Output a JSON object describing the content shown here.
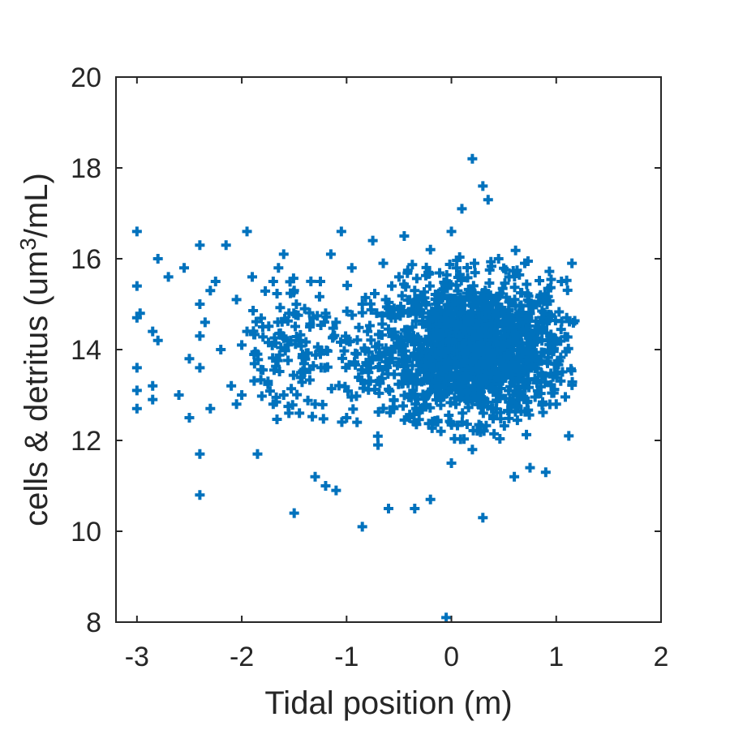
{
  "chart_data": {
    "type": "scatter",
    "title": "",
    "xlabel": "Tidal position (m)",
    "ylabel_main": "cells & detritus (um",
    "ylabel_sup": "3",
    "ylabel_tail": "/mL)",
    "xlim": [
      -3.2,
      2
    ],
    "ylim": [
      8,
      20
    ],
    "xticks": [
      -3,
      -2,
      -1,
      0,
      1,
      2
    ],
    "xtick_labels": [
      "-3",
      "-2",
      "-1",
      "0",
      "1",
      "2"
    ],
    "yticks": [
      8,
      10,
      12,
      14,
      16,
      18,
      20
    ],
    "ytick_labels": [
      "8",
      "10",
      "12",
      "14",
      "16",
      "18",
      "20"
    ],
    "grid": false,
    "box": true,
    "marker": "plus",
    "color": "#0072BD",
    "series": [
      {
        "x": [
          -3.0,
          -3.0,
          -3.0,
          -3.0,
          -3.0,
          -3.0,
          -2.97,
          -2.85,
          -2.85,
          -2.85,
          -2.8,
          -2.8,
          -2.7,
          -2.6,
          -2.55,
          -2.5,
          -2.5,
          -2.4,
          -2.4,
          -2.4,
          -2.4,
          -2.4,
          -2.4,
          -2.35,
          -2.3,
          -2.3,
          -2.25,
          -2.2,
          -2.15,
          -2.1,
          -2.05,
          -2.05,
          -2.0,
          -2.0,
          -1.95,
          -1.95,
          -1.9,
          -1.85,
          -1.85,
          -1.8,
          -1.75,
          -1.7,
          -1.7,
          -1.65,
          -1.6,
          -1.6,
          -1.55,
          -1.55,
          -1.5,
          -1.5,
          -1.45,
          -1.45,
          -1.4,
          -1.4,
          -1.35,
          -1.3,
          -1.3,
          -1.25,
          -1.25,
          -1.2,
          -1.2,
          -1.15,
          -1.1,
          -1.1,
          -1.05,
          -1.0,
          -1.0,
          -0.95,
          -0.9,
          -0.9,
          -0.85,
          -0.85,
          -0.8,
          -0.75,
          -0.7,
          -0.7,
          -0.65,
          -0.6,
          -0.6,
          -0.55,
          -0.5,
          -0.5,
          -0.45,
          -0.4,
          -0.35,
          -0.35,
          -0.3,
          -0.25,
          -0.2,
          -0.2,
          -0.15,
          -0.1,
          -0.1,
          -0.05,
          -0.05,
          0.0,
          0.0,
          0.05,
          0.1,
          0.1,
          0.15,
          0.2,
          0.2,
          0.22,
          0.25,
          0.3,
          0.3,
          0.35,
          0.4,
          0.45,
          0.5,
          0.55,
          0.6,
          0.65,
          0.7,
          0.75,
          0.8,
          0.85,
          0.9,
          0.95,
          1.0,
          1.05,
          1.1,
          1.12,
          1.15
        ],
        "y": [
          16.6,
          15.4,
          14.7,
          13.6,
          13.1,
          12.7,
          14.8,
          14.4,
          13.2,
          12.9,
          16.0,
          14.2,
          15.6,
          13.0,
          15.8,
          13.8,
          12.5,
          16.3,
          15.0,
          14.3,
          13.6,
          11.7,
          10.8,
          14.6,
          15.3,
          12.7,
          15.5,
          14.0,
          16.3,
          13.2,
          15.1,
          12.8,
          14.1,
          13.0,
          16.6,
          14.4,
          15.6,
          13.9,
          11.7,
          14.5,
          13.3,
          15.5,
          12.8,
          15.8,
          16.1,
          13.0,
          14.8,
          12.6,
          15.3,
          10.4,
          14.2,
          12.6,
          14.9,
          13.5,
          14.5,
          12.8,
          11.2,
          15.5,
          13.9,
          14.8,
          11.0,
          16.1,
          14.6,
          10.9,
          16.6,
          14.2,
          12.5,
          15.8,
          13.9,
          12.4,
          15.0,
          10.1,
          14.4,
          16.4,
          13.3,
          11.9,
          15.9,
          14.8,
          10.5,
          12.7,
          15.6,
          14.1,
          16.5,
          12.5,
          15.3,
          10.5,
          14.8,
          13.5,
          16.2,
          10.7,
          15.0,
          13.9,
          12.2,
          14.4,
          8.1,
          16.6,
          11.5,
          15.8,
          17.1,
          13.3,
          14.7,
          18.2,
          11.8,
          15.9,
          14.1,
          17.6,
          10.3,
          17.3,
          13.8,
          16.0,
          14.5,
          15.6,
          11.2,
          14.0,
          15.9,
          11.4,
          13.6,
          15.2,
          11.3,
          14.2,
          12.8,
          15.5,
          14.7,
          12.1,
          15.9
        ],
        "density_center": {
          "x": 0.25,
          "y": 14.0
        }
      }
    ]
  }
}
